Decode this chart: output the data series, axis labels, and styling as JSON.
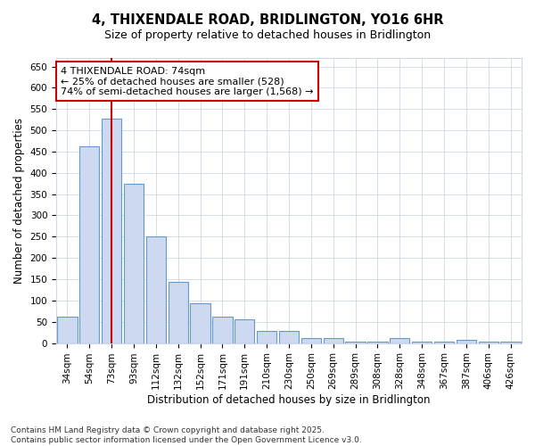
{
  "title": "4, THIXENDALE ROAD, BRIDLINGTON, YO16 6HR",
  "subtitle": "Size of property relative to detached houses in Bridlington",
  "xlabel": "Distribution of detached houses by size in Bridlington",
  "ylabel": "Number of detached properties",
  "categories": [
    "34sqm",
    "54sqm",
    "73sqm",
    "93sqm",
    "112sqm",
    "132sqm",
    "152sqm",
    "171sqm",
    "191sqm",
    "210sqm",
    "230sqm",
    "250sqm",
    "269sqm",
    "289sqm",
    "308sqm",
    "328sqm",
    "348sqm",
    "367sqm",
    "387sqm",
    "406sqm",
    "426sqm"
  ],
  "values": [
    63,
    462,
    528,
    375,
    250,
    143,
    93,
    63,
    55,
    28,
    28,
    12,
    12,
    3,
    3,
    12,
    3,
    3,
    8,
    3,
    3
  ],
  "bar_color": "#ccd9f0",
  "bar_edge_color": "#6699cc",
  "vline_x": 2,
  "vline_color": "#cc0000",
  "annotation_text": "4 THIXENDALE ROAD: 74sqm\n← 25% of detached houses are smaller (528)\n74% of semi-detached houses are larger (1,568) →",
  "annotation_box_color": "#ffffff",
  "annotation_box_edge": "#cc0000",
  "ylim": [
    0,
    670
  ],
  "yticks": [
    0,
    50,
    100,
    150,
    200,
    250,
    300,
    350,
    400,
    450,
    500,
    550,
    600,
    650
  ],
  "footer": "Contains HM Land Registry data © Crown copyright and database right 2025.\nContains public sector information licensed under the Open Government Licence v3.0.",
  "bg_color": "#ffffff",
  "plot_bg_color": "#ffffff",
  "grid_color": "#d0d8e8",
  "title_fontsize": 10.5,
  "subtitle_fontsize": 9,
  "tick_fontsize": 7.5,
  "label_fontsize": 8.5,
  "footer_fontsize": 6.5
}
